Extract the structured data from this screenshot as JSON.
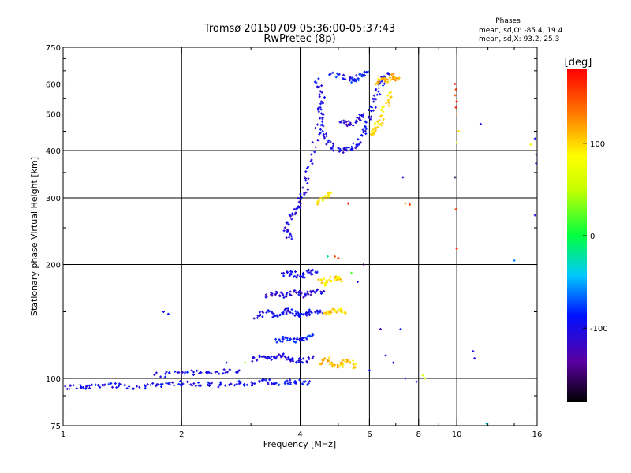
{
  "header": {
    "title": "Tromsø 20150709 05:36:00-05:37:43",
    "subtitle": "RwPretec (8p)",
    "phase_block": {
      "heading": "Phases",
      "line_o": "mean, sd,O: -85.4, 19.4",
      "line_x": "mean, sd,X:  93.2, 25.3"
    }
  },
  "colorbar": {
    "label": "[deg]",
    "min": -180,
    "max": 180,
    "ticks": [
      {
        "value": 100,
        "label": "100"
      },
      {
        "value": 0,
        "label": "0"
      },
      {
        "value": -100,
        "label": "-100"
      }
    ]
  },
  "chart_data": {
    "type": "scatter",
    "title": "Tromsø 20150709 05:36:00-05:37:43",
    "subtitle": "RwPretec (8p)",
    "xlabel": "Frequency [MHz]",
    "ylabel": "Stationary phase Virtual Height [km]",
    "x_scale": "log",
    "y_scale": "log",
    "xlim": [
      1,
      16
    ],
    "ylim": [
      75,
      750
    ],
    "grid": true,
    "x_ticks": [
      {
        "value": 1,
        "label": "1"
      },
      {
        "value": 2,
        "label": "2"
      },
      {
        "value": 4,
        "label": "4"
      },
      {
        "value": 6,
        "label": "6"
      },
      {
        "value": 8,
        "label": "8"
      },
      {
        "value": 10,
        "label": "10"
      },
      {
        "value": 16,
        "label": "16"
      }
    ],
    "x_minor_ticks": [
      3,
      5,
      7,
      9,
      12,
      14
    ],
    "y_ticks": [
      {
        "value": 75,
        "label": "75"
      },
      {
        "value": 100,
        "label": "100"
      },
      {
        "value": 200,
        "label": "200"
      },
      {
        "value": 300,
        "label": "300"
      },
      {
        "value": 400,
        "label": "400"
      },
      {
        "value": 500,
        "label": "500"
      },
      {
        "value": 600,
        "label": "600"
      },
      {
        "value": 750,
        "label": "750"
      }
    ],
    "y_minor_ticks": [
      80,
      90,
      150,
      250,
      350,
      450,
      550,
      650,
      700
    ],
    "color_variable": "phase [deg]",
    "color_range": [
      -180,
      180
    ],
    "series": [
      {
        "traces": [
          {
            "x": [
              1.0,
              1.1,
              1.2,
              1.35,
              1.5,
              1.7,
              1.9,
              2.1,
              2.4,
              2.7,
              3.0,
              3.3,
              3.6,
              3.9,
              4.2
            ],
            "y": [
              94,
              95,
              95,
              96,
              95,
              96,
              97,
              97,
              96,
              97,
              97,
              98,
              97,
              98,
              97
            ],
            "phase": -95
          },
          {
            "x": [
              1.7,
              1.95,
              2.2,
              2.5,
              2.8
            ],
            "y": [
              102,
              103,
              104,
              104,
              105
            ],
            "phase": -100
          },
          {
            "x": [
              3.0,
              3.2,
              3.4,
              3.6,
              3.8,
              4.0,
              4.3
            ],
            "y": [
              112,
              115,
              113,
              116,
              112,
              111,
              113
            ],
            "phase": -105
          },
          {
            "x": [
              3.1,
              3.3,
              3.5,
              3.7,
              3.9,
              4.1,
              4.3,
              4.5
            ],
            "y": [
              145,
              150,
              146,
              152,
              148,
              147,
              150,
              151
            ],
            "phase": -100
          },
          {
            "x": [
              3.3,
              3.5,
              3.7,
              3.9,
              4.1,
              4.3,
              4.6
            ],
            "y": [
              165,
              168,
              165,
              170,
              166,
              168,
              170
            ],
            "phase": -110
          },
          {
            "x": [
              3.6,
              3.8,
              4.0,
              4.2,
              4.4
            ],
            "y": [
              188,
              190,
              186,
              192,
              190
            ],
            "phase": -100
          },
          {
            "x": [
              3.5,
              3.7,
              3.9,
              4.1,
              4.3
            ],
            "y": [
              125,
              128,
              126,
              127,
              130
            ],
            "phase": -90
          },
          {
            "x": [
              3.75,
              3.7,
              3.8,
              3.95,
              4.1,
              4.2,
              4.4,
              4.5
            ],
            "y": [
              232,
              250,
              270,
              285,
              310,
              360,
              430,
              520
            ],
            "phase": -105
          },
          {
            "x": [
              4.4,
              4.55,
              4.5,
              4.6,
              4.8,
              5.1,
              5.4,
              5.7
            ],
            "y": [
              620,
              560,
              500,
              440,
              410,
              400,
              405,
              420
            ],
            "phase": -100
          },
          {
            "x": [
              5.7,
              5.9,
              6.1,
              6.3,
              6.5,
              6.7
            ],
            "y": [
              430,
              470,
              520,
              580,
              620,
              640
            ],
            "phase": -95
          },
          {
            "x": [
              5.0,
              5.3,
              5.6,
              5.8
            ],
            "y": [
              475,
              470,
              480,
              500
            ],
            "phase": -110
          },
          {
            "x": [
              4.8,
              5.2,
              5.5,
              5.7,
              5.9
            ],
            "y": [
              640,
              620,
              610,
              630,
              645
            ],
            "phase": -90
          },
          {
            "x": [
              6.0,
              6.2,
              6.4,
              6.6,
              6.8
            ],
            "y": [
              440,
              455,
              480,
              520,
              570
            ],
            "phase": 95
          },
          {
            "x": [
              6.2,
              6.4,
              6.6,
              6.9,
              7.1
            ],
            "y": [
              600,
              620,
              610,
              630,
              615
            ],
            "phase": 110
          },
          {
            "x": [
              4.5,
              4.7,
              4.9,
              5.1,
              5.3,
              5.5
            ],
            "y": [
              110,
              112,
              108,
              109,
              111,
              107
            ],
            "phase": 105
          },
          {
            "x": [
              4.5,
              4.7,
              4.9,
              5.1
            ],
            "y": [
              182,
              178,
              185,
              180
            ],
            "phase": 95
          },
          {
            "x": [
              4.6,
              4.8,
              5.0,
              5.2
            ],
            "y": [
              150,
              148,
              152,
              149
            ],
            "phase": 100
          },
          {
            "x": [
              4.4,
              4.6,
              4.8
            ],
            "y": [
              290,
              300,
              310
            ],
            "phase": 90
          }
        ]
      }
    ],
    "points": [
      {
        "x": 1.8,
        "y": 150,
        "phase": -95
      },
      {
        "x": 1.85,
        "y": 148,
        "phase": -95
      },
      {
        "x": 4.9,
        "y": 210,
        "phase": 150
      },
      {
        "x": 5.0,
        "y": 208,
        "phase": 160
      },
      {
        "x": 4.7,
        "y": 210,
        "phase": -20
      },
      {
        "x": 5.4,
        "y": 190,
        "phase": 20
      },
      {
        "x": 5.6,
        "y": 180,
        "phase": -100
      },
      {
        "x": 5.8,
        "y": 200,
        "phase": -150
      },
      {
        "x": 5.3,
        "y": 290,
        "phase": 170
      },
      {
        "x": 7.3,
        "y": 340,
        "phase": -110
      },
      {
        "x": 7.4,
        "y": 290,
        "phase": 120
      },
      {
        "x": 7.6,
        "y": 288,
        "phase": 150
      },
      {
        "x": 6.4,
        "y": 135,
        "phase": -120
      },
      {
        "x": 6.6,
        "y": 115,
        "phase": -100
      },
      {
        "x": 6.9,
        "y": 110,
        "phase": -100
      },
      {
        "x": 7.2,
        "y": 135,
        "phase": -90
      },
      {
        "x": 7.4,
        "y": 100,
        "phase": -110
      },
      {
        "x": 8.2,
        "y": 102,
        "phase": 60
      },
      {
        "x": 8.3,
        "y": 100,
        "phase": 50
      },
      {
        "x": 7.9,
        "y": 98,
        "phase": -100
      },
      {
        "x": 6.0,
        "y": 105,
        "phase": -95
      },
      {
        "x": 9.9,
        "y": 600,
        "phase": 170
      },
      {
        "x": 9.95,
        "y": 580,
        "phase": 160
      },
      {
        "x": 9.9,
        "y": 560,
        "phase": 150
      },
      {
        "x": 10.0,
        "y": 540,
        "phase": 175
      },
      {
        "x": 9.95,
        "y": 520,
        "phase": 165
      },
      {
        "x": 10.0,
        "y": 500,
        "phase": 140
      },
      {
        "x": 10.1,
        "y": 450,
        "phase": 100
      },
      {
        "x": 10.0,
        "y": 420,
        "phase": 80
      },
      {
        "x": 9.9,
        "y": 340,
        "phase": -160
      },
      {
        "x": 9.95,
        "y": 280,
        "phase": 150
      },
      {
        "x": 10.0,
        "y": 220,
        "phase": 165
      },
      {
        "x": 11.5,
        "y": 470,
        "phase": -110
      },
      {
        "x": 11.0,
        "y": 118,
        "phase": -110
      },
      {
        "x": 11.1,
        "y": 113,
        "phase": -100
      },
      {
        "x": 11.9,
        "y": 76,
        "phase": -40
      },
      {
        "x": 14.0,
        "y": 205,
        "phase": -60
      },
      {
        "x": 15.8,
        "y": 430,
        "phase": -100
      },
      {
        "x": 15.9,
        "y": 390,
        "phase": -110
      },
      {
        "x": 15.9,
        "y": 370,
        "phase": -115
      },
      {
        "x": 15.8,
        "y": 270,
        "phase": -105
      },
      {
        "x": 15.4,
        "y": 415,
        "phase": 80
      },
      {
        "x": 3.9,
        "y": 97,
        "phase": -95
      },
      {
        "x": 2.9,
        "y": 110,
        "phase": 30
      },
      {
        "x": 2.6,
        "y": 110,
        "phase": -80
      }
    ]
  }
}
